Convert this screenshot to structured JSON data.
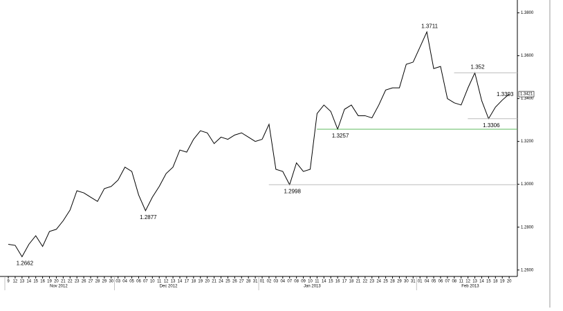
{
  "chart_data": {
    "type": "line",
    "color": "#000000",
    "ylim": [
      1.257,
      1.386
    ],
    "yticks": [
      {
        "value": 1.38,
        "label": "1.3800"
      },
      {
        "value": 1.36,
        "label": "1.3600"
      },
      {
        "value": 1.34,
        "label": "1.3400"
      },
      {
        "value": 1.32,
        "label": "1.3200"
      },
      {
        "value": 1.3,
        "label": "1.3000"
      },
      {
        "value": 1.28,
        "label": "1.2800"
      },
      {
        "value": 1.26,
        "label": "1.2600"
      }
    ],
    "last_price": 1.3421,
    "months": [
      {
        "label": "Nov 2012",
        "days": [
          "9",
          "12",
          "13",
          "14",
          "15",
          "16",
          "19",
          "20",
          "21",
          "22",
          "23",
          "26",
          "27",
          "28",
          "29",
          "30"
        ],
        "values": [
          1.272,
          1.2715,
          1.2662,
          1.272,
          1.276,
          1.271,
          1.278,
          1.279,
          1.283,
          1.288,
          1.297,
          1.296,
          1.294,
          1.292,
          1.298,
          1.299
        ]
      },
      {
        "label": "Dec 2012",
        "days": [
          "03",
          "04",
          "05",
          "06",
          "07",
          "10",
          "11",
          "12",
          "13",
          "14",
          "17",
          "18",
          "19",
          "20",
          "21",
          "24",
          "25",
          "26",
          "27",
          "28",
          "31"
        ],
        "values": [
          1.302,
          1.308,
          1.306,
          1.295,
          1.2877,
          1.294,
          1.299,
          1.305,
          1.308,
          1.316,
          1.315,
          1.321,
          1.325,
          1.324,
          1.319,
          1.322,
          1.321,
          1.323,
          1.324,
          1.322,
          1.32
        ]
      },
      {
        "label": "Jan 2013",
        "days": [
          "01",
          "02",
          "03",
          "04",
          "07",
          "08",
          "09",
          "10",
          "11",
          "14",
          "15",
          "16",
          "17",
          "18",
          "21",
          "22",
          "23",
          "24",
          "25",
          "28",
          "29",
          "30",
          "31"
        ],
        "values": [
          1.321,
          1.328,
          1.307,
          1.306,
          1.2998,
          1.31,
          1.306,
          1.307,
          1.333,
          1.337,
          1.334,
          1.3257,
          1.335,
          1.337,
          1.332,
          1.332,
          1.331,
          1.337,
          1.344,
          1.345,
          1.345,
          1.356,
          1.357
        ]
      },
      {
        "label": "Feb 2013",
        "days": [
          "01",
          "04",
          "05",
          "06",
          "07",
          "08",
          "11",
          "12",
          "13",
          "14",
          "15",
          "18",
          "19",
          "20"
        ],
        "values": [
          1.364,
          1.3711,
          1.354,
          1.355,
          1.34,
          1.338,
          1.337,
          1.345,
          1.352,
          1.339,
          1.3306,
          1.336,
          1.3393,
          1.3421
        ]
      }
    ],
    "annotations": [
      {
        "value": 1.2662,
        "position": "below"
      },
      {
        "value": 1.2877,
        "position": "below"
      },
      {
        "value": 1.2998,
        "position": "below",
        "line_color": "#bbbbbb"
      },
      {
        "value": 1.3257,
        "position": "below",
        "line_color": "#5cb85c"
      },
      {
        "value": 1.3711,
        "position": "above"
      },
      {
        "value": 1.352,
        "position": "above",
        "line_color": "#bbbbbb"
      },
      {
        "value": 1.3393,
        "position": "above"
      },
      {
        "value": 1.3306,
        "position": "below",
        "line_color": "#bbbbbb"
      }
    ]
  }
}
